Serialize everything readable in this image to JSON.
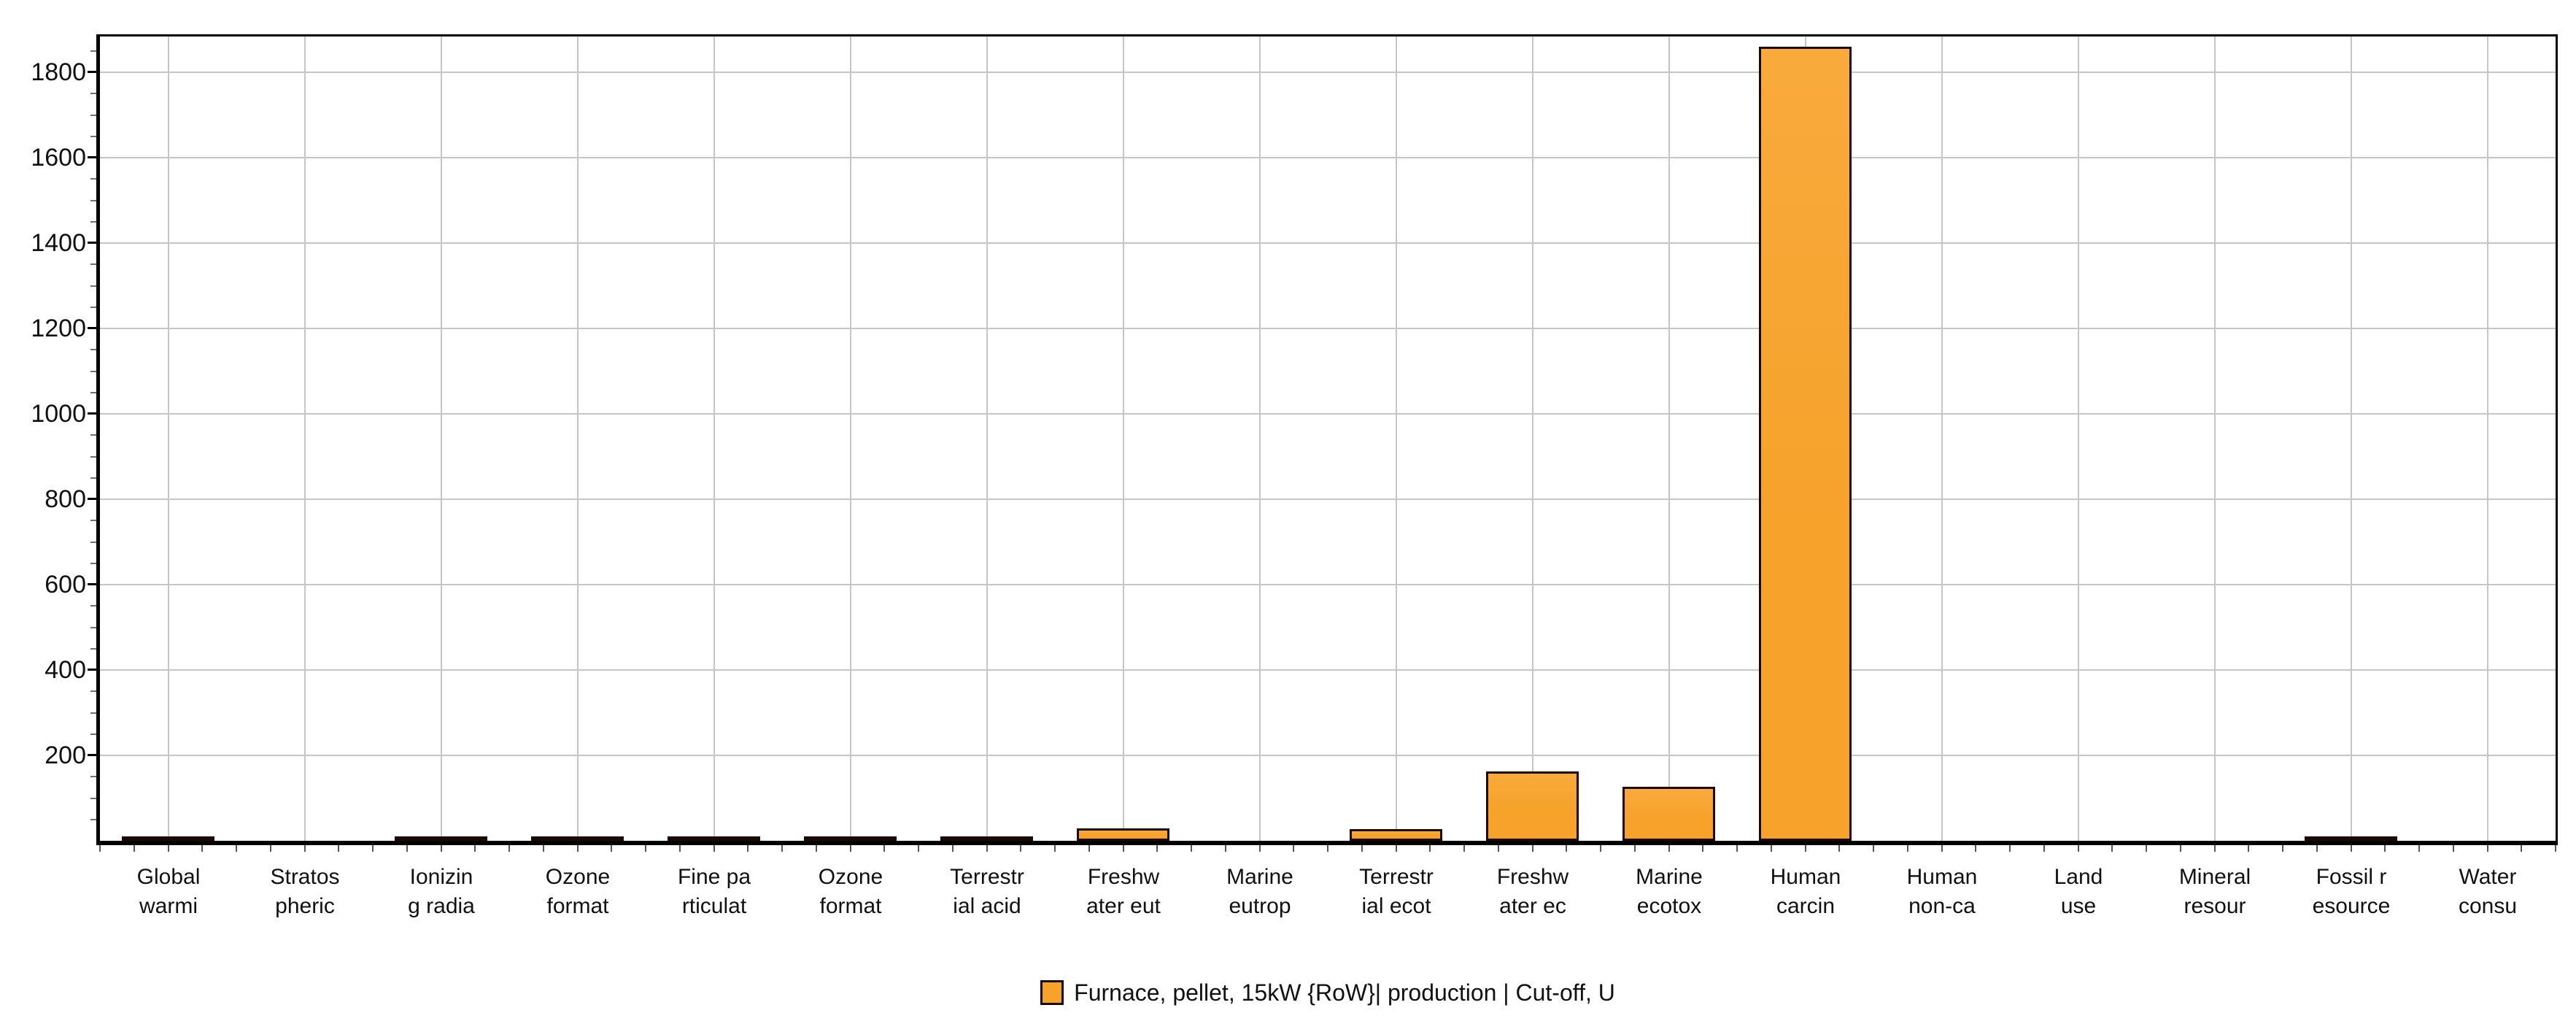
{
  "chart_data": {
    "type": "bar",
    "title": "",
    "xlabel": "",
    "ylabel": "",
    "categories": [
      [
        "Global",
        "warmi"
      ],
      [
        "Stratos",
        "pheric"
      ],
      [
        "Ionizin",
        "g radia"
      ],
      [
        "Ozone",
        "format"
      ],
      [
        "Fine pa",
        "rticulat"
      ],
      [
        "Ozone",
        "format"
      ],
      [
        "Terrestr",
        "ial acid"
      ],
      [
        "Freshw",
        "ater eut"
      ],
      [
        "Marine",
        "eutrop"
      ],
      [
        "Terrestr",
        "ial ecot"
      ],
      [
        "Freshw",
        "ater ec"
      ],
      [
        "Marine",
        "ecotox"
      ],
      [
        "Human",
        "carcin"
      ],
      [
        "Human",
        "non-ca"
      ],
      [
        "Land",
        "use"
      ],
      [
        "Mineral",
        "resour"
      ],
      [
        "Fossil r",
        "esource"
      ],
      [
        "Water",
        "consu"
      ]
    ],
    "values": [
      5,
      0,
      4,
      5,
      5,
      5,
      7,
      29,
      0,
      27,
      162,
      127,
      1860,
      0,
      0,
      0,
      11,
      0
    ],
    "series": [
      {
        "name": "Furnace, pellet, 15kW {RoW}| production | Cut-off, U",
        "values": [
          5,
          0,
          4,
          5,
          5,
          5,
          7,
          29,
          0,
          27,
          162,
          127,
          1860,
          0,
          0,
          0,
          11,
          0
        ]
      }
    ],
    "ylim": [
      0,
      1884
    ],
    "yticks_labeled": [
      200,
      400,
      600,
      800,
      1000,
      1200,
      1400,
      1600,
      1800
    ],
    "ytick_interval": 200,
    "yminor_tick_interval": 50,
    "xminor_ticks_per_category": 4,
    "grid": true,
    "legend_position": "bottom",
    "colors": {
      "bar_fill": "#F6A22B",
      "bar_fill_top": "#F8AA3C",
      "bar_border": "#1C0A00",
      "grid_line": "#C6C6C6",
      "axis_line": "#000000",
      "text": "#111111",
      "background": "#FFFFFF"
    }
  },
  "legend": {
    "label": "Furnace, pellet, 15kW {RoW}| production | Cut-off, U"
  }
}
